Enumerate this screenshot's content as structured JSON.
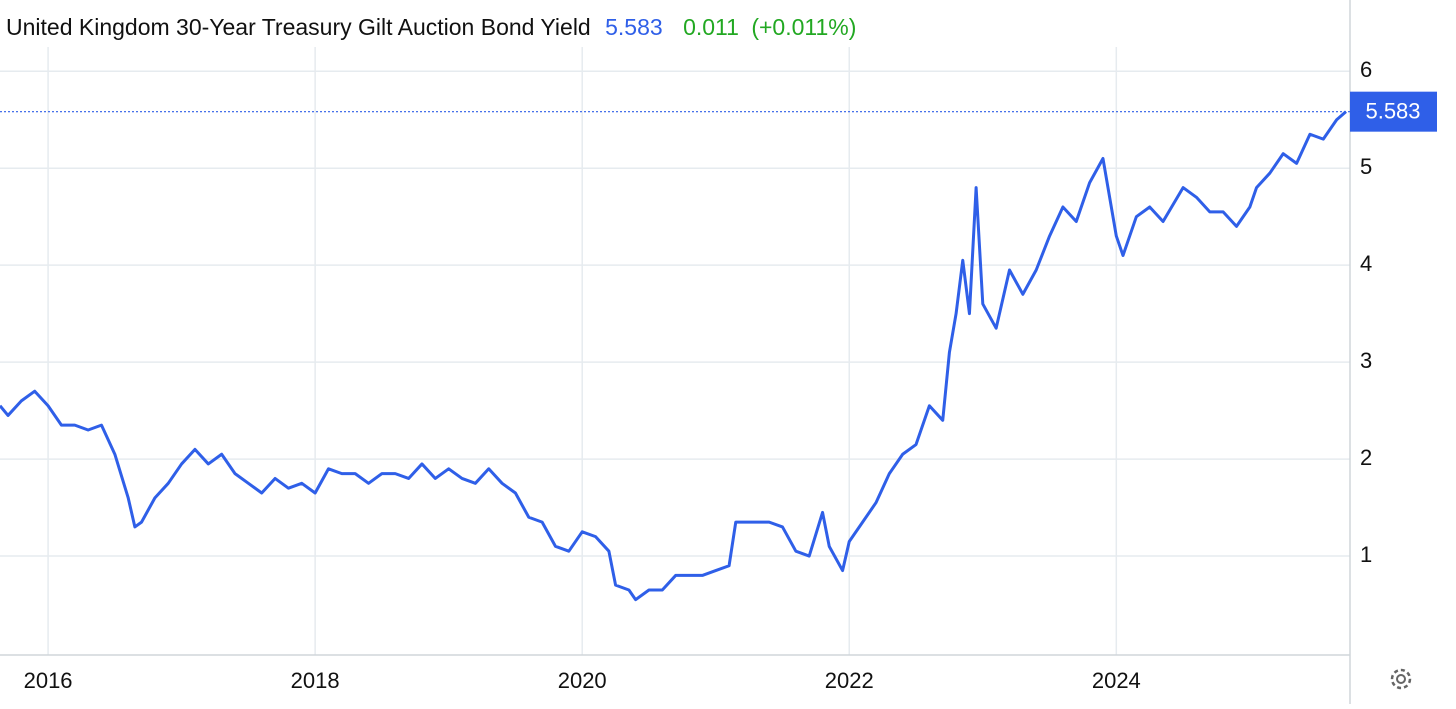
{
  "chart_data": {
    "type": "line",
    "title": "United Kingdom 30-Year Treasury Gilt Auction Bond Yield",
    "last_value": 5.583,
    "change": 0.011,
    "change_pct": "(+0.011%)",
    "series": [
      {
        "color": "#2f5fe8",
        "x": [
          2015.64,
          2015.7,
          2015.8,
          2015.9,
          2016.0,
          2016.1,
          2016.2,
          2016.3,
          2016.4,
          2016.5,
          2016.6,
          2016.65,
          2016.7,
          2016.8,
          2016.9,
          2017.0,
          2017.1,
          2017.2,
          2017.3,
          2017.4,
          2017.5,
          2017.6,
          2017.7,
          2017.8,
          2017.9,
          2018.0,
          2018.1,
          2018.2,
          2018.3,
          2018.4,
          2018.5,
          2018.6,
          2018.7,
          2018.8,
          2018.9,
          2019.0,
          2019.1,
          2019.2,
          2019.3,
          2019.4,
          2019.5,
          2019.6,
          2019.7,
          2019.8,
          2019.9,
          2020.0,
          2020.1,
          2020.2,
          2020.25,
          2020.35,
          2020.4,
          2020.5,
          2020.6,
          2020.7,
          2020.8,
          2020.9,
          2021.0,
          2021.1,
          2021.15,
          2021.3,
          2021.4,
          2021.5,
          2021.6,
          2021.7,
          2021.8,
          2021.85,
          2021.95,
          2022.0,
          2022.1,
          2022.2,
          2022.3,
          2022.4,
          2022.5,
          2022.6,
          2022.7,
          2022.75,
          2022.8,
          2022.85,
          2022.9,
          2022.95,
          2023.0,
          2023.1,
          2023.2,
          2023.3,
          2023.4,
          2023.5,
          2023.6,
          2023.7,
          2023.8,
          2023.9,
          2024.0,
          2024.05,
          2024.15,
          2024.25,
          2024.35,
          2024.5,
          2024.6,
          2024.7,
          2024.8,
          2024.9,
          2025.0,
          2025.05,
          2025.15,
          2025.25,
          2025.35,
          2025.45,
          2025.55,
          2025.65,
          2025.72
        ],
        "values": [
          2.55,
          2.45,
          2.6,
          2.7,
          2.55,
          2.35,
          2.35,
          2.3,
          2.35,
          2.05,
          1.6,
          1.3,
          1.35,
          1.6,
          1.75,
          1.95,
          2.1,
          1.95,
          2.05,
          1.85,
          1.75,
          1.65,
          1.8,
          1.7,
          1.75,
          1.65,
          1.9,
          1.85,
          1.85,
          1.75,
          1.85,
          1.85,
          1.8,
          1.95,
          1.8,
          1.9,
          1.8,
          1.75,
          1.9,
          1.75,
          1.65,
          1.4,
          1.35,
          1.1,
          1.05,
          1.25,
          1.2,
          1.05,
          0.7,
          0.65,
          0.55,
          0.65,
          0.65,
          0.8,
          0.8,
          0.8,
          0.85,
          0.9,
          1.35,
          1.35,
          1.35,
          1.3,
          1.05,
          1.0,
          1.45,
          1.1,
          0.85,
          1.15,
          1.35,
          1.55,
          1.85,
          2.05,
          2.15,
          2.55,
          2.4,
          3.1,
          3.5,
          4.05,
          3.5,
          4.8,
          3.6,
          3.35,
          3.95,
          3.7,
          3.95,
          4.3,
          4.6,
          4.45,
          4.85,
          5.1,
          4.3,
          4.1,
          4.5,
          4.6,
          4.45,
          4.8,
          4.7,
          4.55,
          4.55,
          4.4,
          4.6,
          4.8,
          4.95,
          5.15,
          5.05,
          5.35,
          5.3,
          5.5,
          5.583
        ]
      }
    ],
    "xlim": [
      2015.64,
      2025.75
    ],
    "xticks": [
      2016,
      2018,
      2020,
      2022,
      2024
    ],
    "ylim": [
      0,
      6.25
    ],
    "yticks": [
      1,
      2,
      3,
      4,
      5,
      6
    ],
    "grid": true
  }
}
